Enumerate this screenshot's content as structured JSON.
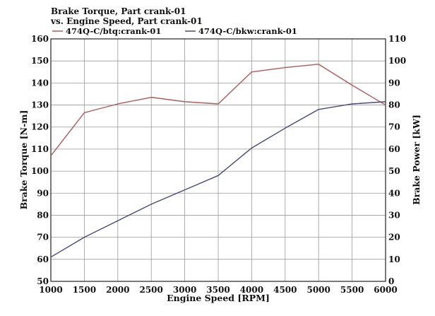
{
  "chart_data": {
    "type": "line",
    "title_lines": [
      "Brake Torque, Part crank-01",
      "vs. Engine Speed, Part crank-01"
    ],
    "xlabel": "Engine Speed [RPM]",
    "ylabel_left": "Brake Torque [N-m]",
    "ylabel_right": "Brake Power [kW]",
    "xlim": [
      1000,
      6000
    ],
    "ylim_left": [
      50,
      160
    ],
    "ylim_right": [
      0,
      110
    ],
    "x_ticks": [
      1000,
      1500,
      2000,
      2500,
      3000,
      3500,
      4000,
      4500,
      5000,
      5500,
      6000
    ],
    "y_ticks_left": [
      50,
      60,
      70,
      80,
      90,
      100,
      110,
      120,
      130,
      140,
      150,
      160
    ],
    "y_ticks_right": [
      0,
      10,
      20,
      30,
      40,
      50,
      60,
      70,
      80,
      90,
      100,
      110
    ],
    "grid": true,
    "legend_placement": "top-left",
    "series": [
      {
        "name": "474Q-C/btq:crank-01",
        "axis": "left",
        "color": "#b05a5a",
        "x": [
          1000,
          1500,
          2000,
          2500,
          3000,
          3500,
          4000,
          4500,
          5000,
          5500,
          6000
        ],
        "y": [
          107,
          126.5,
          130.5,
          133.5,
          131.5,
          130.5,
          145,
          147,
          148.5,
          139,
          130
        ]
      },
      {
        "name": "474Q-C/bkw:crank-01",
        "axis": "right",
        "color": "#48487e",
        "x": [
          1000,
          1500,
          2000,
          2500,
          3000,
          3500,
          4000,
          4500,
          5000,
          5500,
          6000
        ],
        "y": [
          11,
          20,
          27.5,
          35,
          41.5,
          48,
          60.5,
          69.5,
          78,
          80.5,
          81.5
        ]
      }
    ]
  }
}
